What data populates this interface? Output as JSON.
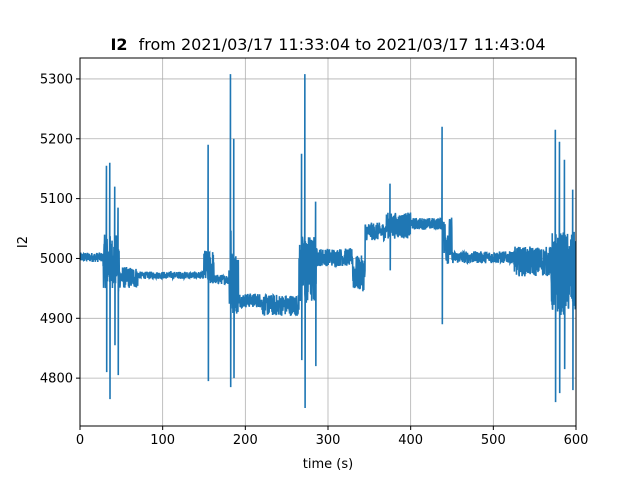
{
  "chart_data": {
    "type": "line",
    "title": {
      "signal": "I2",
      "text": "from 2021/03/17 11:33:04 to 2021/03/17 11:43:04"
    },
    "xlabel": "time (s)",
    "ylabel": "I2",
    "xlim": [
      0,
      600
    ],
    "ylim": [
      4720,
      5335
    ],
    "xticks": [
      0,
      100,
      200,
      300,
      400,
      500,
      600
    ],
    "yticks": [
      4800,
      4900,
      5000,
      5100,
      5200,
      5300
    ],
    "grid": true,
    "series": [
      {
        "color": "#1f77b4",
        "segments": [
          {
            "t0": 0,
            "t1": 28,
            "base": 5002,
            "noise": 8
          },
          {
            "t0": 28,
            "t1": 48,
            "base": 4995,
            "noise": 45
          },
          {
            "t0": 48,
            "t1": 70,
            "base": 4968,
            "noise": 18
          },
          {
            "t0": 70,
            "t1": 150,
            "base": 4972,
            "noise": 6
          },
          {
            "t0": 150,
            "t1": 162,
            "base": 4985,
            "noise": 30
          },
          {
            "t0": 162,
            "t1": 180,
            "base": 4965,
            "noise": 8
          },
          {
            "t0": 180,
            "t1": 192,
            "base": 4960,
            "noise": 55
          },
          {
            "t0": 192,
            "t1": 220,
            "base": 4930,
            "noise": 12
          },
          {
            "t0": 220,
            "t1": 265,
            "base": 4922,
            "noise": 18
          },
          {
            "t0": 265,
            "t1": 285,
            "base": 4980,
            "noise": 60
          },
          {
            "t0": 285,
            "t1": 330,
            "base": 5002,
            "noise": 15
          },
          {
            "t0": 330,
            "t1": 345,
            "base": 4975,
            "noise": 30
          },
          {
            "t0": 345,
            "t1": 370,
            "base": 5045,
            "noise": 15
          },
          {
            "t0": 370,
            "t1": 400,
            "base": 5055,
            "noise": 22
          },
          {
            "t0": 400,
            "t1": 440,
            "base": 5058,
            "noise": 10
          },
          {
            "t0": 440,
            "t1": 450,
            "base": 5030,
            "noise": 40
          },
          {
            "t0": 450,
            "t1": 525,
            "base": 5002,
            "noise": 10
          },
          {
            "t0": 525,
            "t1": 570,
            "base": 4995,
            "noise": 25
          },
          {
            "t0": 570,
            "t1": 600,
            "base": 4975,
            "noise": 70
          }
        ],
        "spikes": [
          {
            "t": 32,
            "lo": 4810,
            "hi": 5155
          },
          {
            "t": 36,
            "lo": 4765,
            "hi": 5160
          },
          {
            "t": 42,
            "lo": 4855,
            "hi": 5120
          },
          {
            "t": 46,
            "lo": 4805,
            "hi": 5085
          },
          {
            "t": 155,
            "lo": 4795,
            "hi": 5190
          },
          {
            "t": 182,
            "lo": 4785,
            "hi": 5308
          },
          {
            "t": 186,
            "lo": 4800,
            "hi": 5200
          },
          {
            "t": 268,
            "lo": 4830,
            "hi": 5175
          },
          {
            "t": 272,
            "lo": 4750,
            "hi": 5308
          },
          {
            "t": 285,
            "lo": 4820,
            "hi": 5095
          },
          {
            "t": 375,
            "lo": 4980,
            "hi": 5125
          },
          {
            "t": 438,
            "lo": 4890,
            "hi": 5220
          },
          {
            "t": 575,
            "lo": 4760,
            "hi": 5215
          },
          {
            "t": 580,
            "lo": 4775,
            "hi": 5195
          },
          {
            "t": 586,
            "lo": 4815,
            "hi": 5165
          },
          {
            "t": 596,
            "lo": 4780,
            "hi": 5115
          }
        ]
      }
    ]
  }
}
